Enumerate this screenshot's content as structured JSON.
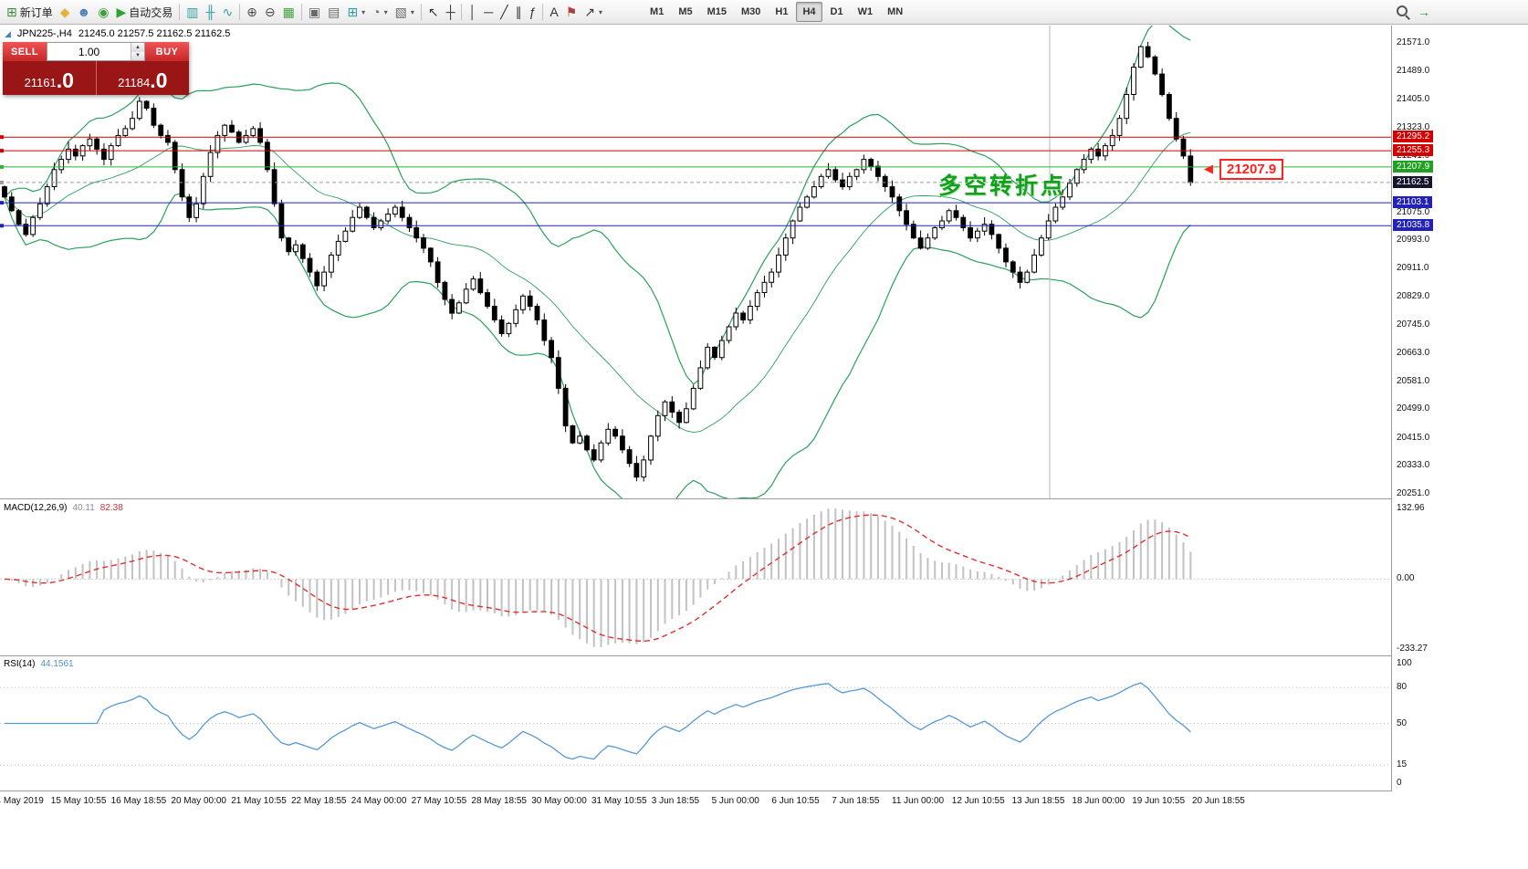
{
  "toolbar": {
    "new_order_label": "新订单",
    "autotrading_label": "自动交易",
    "timeframes": [
      {
        "label": "M1",
        "active": false
      },
      {
        "label": "M5",
        "active": false
      },
      {
        "label": "M15",
        "active": false
      },
      {
        "label": "M30",
        "active": false
      },
      {
        "label": "H1",
        "active": false
      },
      {
        "label": "H4",
        "active": true
      },
      {
        "label": "D1",
        "active": false
      },
      {
        "label": "W1",
        "active": false
      },
      {
        "label": "MN",
        "active": false
      }
    ],
    "buttons": [
      {
        "name": "new-order-button",
        "icon": "new-order-icon",
        "glyph": "⊞",
        "color": "#3c8a3c",
        "label_key": "new_order_label"
      },
      {
        "name": "mql5-services-button",
        "icon": "gold-diamond-icon",
        "glyph": "◆",
        "color": "#e2b63c"
      },
      {
        "name": "community-button",
        "icon": "profile-icon",
        "glyph": "☻",
        "color": "#4a7ebc"
      },
      {
        "name": "news-button",
        "icon": "green-dot-icon",
        "glyph": "◉",
        "color": "#3fa03f"
      },
      {
        "name": "autotrading-button",
        "icon": "autotrading-play-icon",
        "glyph": "▶",
        "color": "#2fa32f",
        "label_key": "autotrading_label"
      },
      {
        "sep": true
      },
      {
        "name": "bar-chart-button",
        "icon": "bar-chart-icon",
        "glyph": "▥",
        "color": "#2e9e9e"
      },
      {
        "name": "candlestick-chart-button",
        "icon": "candlestick-icon",
        "glyph": "╫",
        "color": "#2e9e9e"
      },
      {
        "name": "line-chart-button",
        "icon": "line-chart-icon",
        "glyph": "∿",
        "color": "#2e9e9e"
      },
      {
        "sep": true
      },
      {
        "name": "zoom-in-button",
        "icon": "zoom-in-icon",
        "glyph": "⊕",
        "color": "#4a4a4a"
      },
      {
        "name": "zoom-out-button",
        "icon": "zoom-out-icon",
        "glyph": "⊖",
        "color": "#4a4a4a"
      },
      {
        "name": "tile-windows-button",
        "icon": "tile-windows-icon",
        "glyph": "▦",
        "color": "#3fa03f"
      },
      {
        "sep": true
      },
      {
        "name": "cascade-windows-button",
        "icon": "cascade-windows-icon",
        "glyph": "▣",
        "color": "#6a6a6a"
      },
      {
        "name": "arrange-windows-button",
        "icon": "arrange-windows-icon",
        "glyph": "▤",
        "color": "#6a6a6a"
      },
      {
        "name": "new-chart-button",
        "icon": "new-chart-icon",
        "glyph": "⊞",
        "color": "#2e9e9e",
        "dropdown": true
      },
      {
        "name": "profiles-button",
        "icon": "clock-icon",
        "glyph": "◔",
        "color": "#6a6a6a",
        "dropdown": true
      },
      {
        "name": "templates-button",
        "icon": "template-icon",
        "glyph": "▧",
        "color": "#6a6a6a",
        "dropdown": true
      },
      {
        "sep": true
      },
      {
        "name": "cursor-button",
        "icon": "cursor-icon",
        "glyph": "↖",
        "color": "#333333"
      },
      {
        "name": "crosshair-button",
        "icon": "crosshair-icon",
        "glyph": "┼",
        "color": "#333333"
      },
      {
        "sep": true
      },
      {
        "name": "vertical-line-button",
        "icon": "vertical-line-icon",
        "glyph": "│",
        "color": "#333333"
      },
      {
        "name": "horizontal-line-button",
        "icon": "horizontal-line-icon",
        "glyph": "─",
        "color": "#333333"
      },
      {
        "name": "trendline-button",
        "icon": "trendline-icon",
        "glyph": "╱",
        "color": "#333333"
      },
      {
        "name": "channel-button",
        "icon": "channel-icon",
        "glyph": "∥",
        "color": "#333333"
      },
      {
        "name": "fibonacci-button",
        "icon": "fibonacci-icon",
        "glyph": "ƒ",
        "color": "#333333"
      },
      {
        "sep": true
      },
      {
        "name": "text-button",
        "icon": "text-icon",
        "glyph": "A",
        "color": "#333333"
      },
      {
        "name": "label-button",
        "icon": "flag-icon",
        "glyph": "⚑",
        "color": "#b04040"
      },
      {
        "name": "arrows-button",
        "icon": "arrow-object-icon",
        "glyph": "↗",
        "color": "#333333",
        "dropdown": true
      },
      {
        "spacer": 40
      },
      {
        "tfgroup": true
      },
      {
        "flex": true
      },
      {
        "name": "search-button",
        "icon": "search-icon",
        "css": "magnifier"
      },
      {
        "name": "chart-forward-button",
        "icon": "forward-arrow-icon",
        "glyph": "→",
        "color": "#2fa32f"
      },
      {
        "spacer": 100
      }
    ]
  },
  "trade": {
    "sell_label": "SELL",
    "buy_label": "BUY",
    "lot": "1.00",
    "sell_small": "21161",
    "sell_big": ".0",
    "buy_small": "21184",
    "buy_big": ".0"
  },
  "chart": {
    "symbol_period": "JPN225-,H4",
    "ohlc_text": "21245.0 21257.5 21162.5 21162.5",
    "annotation": "多空转折点",
    "callout_price": "21207.9",
    "vline_x": 1150,
    "axis_ticks": [
      21571.0,
      21489.0,
      21405.0,
      21323.0,
      21241.0,
      21157.0,
      21075.0,
      20993.0,
      20911.0,
      20829.0,
      20745.0,
      20663.0,
      20581.0,
      20499.0,
      20415.0,
      20333.0,
      20251.0
    ],
    "levels": [
      {
        "price": 21295.2,
        "label": "21295.2",
        "line_color": "#d40000",
        "chip_color": "#d40000",
        "dash": null
      },
      {
        "price": 21255.3,
        "label": "21255.3",
        "line_color": "#d40000",
        "chip_color": "#d40000",
        "dash": null
      },
      {
        "price": 21207.9,
        "label": "21207.9",
        "line_color": "#2fb32f",
        "chip_color": "#21a121",
        "dash": null
      },
      {
        "price": 21162.5,
        "label": "21162.5",
        "line_color": "#9a9a9a",
        "chip_color": "#15152e",
        "dash": "4,3"
      },
      {
        "price": 21103.1,
        "label": "21103.1",
        "line_color": "#2222bb",
        "chip_color": "#2222bb",
        "dash": null
      },
      {
        "price": 21035.8,
        "label": "21035.8",
        "line_color": "#2222bb",
        "chip_color": "#2222bb",
        "dash": null
      }
    ]
  },
  "macd": {
    "name": "MACD(12,26,9)",
    "value_main": "40.11",
    "value_signal": "82.38",
    "axis": [
      {
        "text": "132.96",
        "pos": "top"
      },
      {
        "text": "0.00",
        "pos": "zero"
      },
      {
        "text": "-233.27",
        "pos": "bottom"
      }
    ]
  },
  "rsi": {
    "name": "RSI(14)",
    "value": "44.1561",
    "axis": [
      {
        "text": "100",
        "v": 100
      },
      {
        "text": "80",
        "v": 80
      },
      {
        "text": "50",
        "v": 50
      },
      {
        "text": "15",
        "v": 15
      },
      {
        "text": "0",
        "v": 0
      }
    ],
    "levels": [
      80,
      50,
      15
    ]
  },
  "dates": [
    "14 May 2019",
    "15 May 10:55",
    "16 May 18:55",
    "20 May 00:00",
    "21 May 10:55",
    "22 May 18:55",
    "24 May 00:00",
    "27 May 10:55",
    "28 May 18:55",
    "30 May 00:00",
    "31 May 10:55",
    "3 Jun 18:55",
    "5 Jun 00:00",
    "6 Jun 10:55",
    "7 Jun 18:55",
    "11 Jun 00:00",
    "12 Jun 10:55",
    "13 Jun 18:55",
    "18 Jun 00:00",
    "19 Jun 10:55",
    "20 Jun 18:55"
  ],
  "chart_data": {
    "type": "candlestick",
    "symbol": "JPN225-",
    "timeframe": "H4",
    "last_ohlc": {
      "open": 21245.0,
      "high": 21257.5,
      "low": 21162.5,
      "close": 21162.5
    },
    "bid": 21161.0,
    "ask": 21184.0,
    "ylim": [
      20251.0,
      21571.0
    ],
    "horizontal_levels": [
      21295.2,
      21255.3,
      21207.9,
      21103.1,
      21035.8
    ],
    "indicators": {
      "bollinger": {
        "period": 20,
        "deviation": 2,
        "color": "#2aa05a"
      },
      "macd": {
        "fast": 12,
        "slow": 26,
        "signal": 9,
        "current_main": 40.11,
        "current_signal": 82.38,
        "range": [
          -233.27,
          132.96
        ]
      },
      "rsi": {
        "period": 14,
        "current": 44.1561
      }
    },
    "closes": [
      21120,
      21080,
      21040,
      21010,
      21060,
      21100,
      21150,
      21200,
      21230,
      21260,
      21240,
      21270,
      21290,
      21260,
      21230,
      21270,
      21300,
      21320,
      21350,
      21400,
      21380,
      21330,
      21300,
      21280,
      21200,
      21120,
      21060,
      21100,
      21180,
      21250,
      21300,
      21330,
      21310,
      21280,
      21300,
      21320,
      21280,
      21200,
      21100,
      21000,
      20960,
      20980,
      20940,
      20900,
      20860,
      20900,
      20950,
      20990,
      21020,
      21060,
      21090,
      21060,
      21030,
      21050,
      21070,
      21090,
      21060,
      21030,
      21000,
      20970,
      20930,
      20870,
      20820,
      20780,
      20810,
      20850,
      20880,
      20840,
      20800,
      20760,
      20720,
      20750,
      20790,
      20830,
      20800,
      20760,
      20700,
      20650,
      20560,
      20450,
      20400,
      20420,
      20380,
      20350,
      20400,
      20440,
      20420,
      20380,
      20340,
      20300,
      20350,
      20420,
      20480,
      20520,
      20490,
      20460,
      20500,
      20560,
      20620,
      20680,
      20650,
      20700,
      20740,
      20780,
      20760,
      20800,
      20840,
      20870,
      20900,
      20950,
      21000,
      21050,
      21090,
      21120,
      21150,
      21180,
      21200,
      21170,
      21150,
      21180,
      21200,
      21230,
      21210,
      21180,
      21150,
      21120,
      21080,
      21040,
      21000,
      20970,
      21000,
      21030,
      21050,
      21080,
      21060,
      21030,
      21000,
      21020,
      21040,
      21010,
      20970,
      20930,
      20900,
      20870,
      20900,
      20950,
      21000,
      21050,
      21090,
      21120,
      21160,
      21200,
      21230,
      21260,
      21240,
      21270,
      21300,
      21350,
      21420,
      21500,
      21560,
      21530,
      21480,
      21420,
      21350,
      21290,
      21240,
      21162.5
    ]
  }
}
